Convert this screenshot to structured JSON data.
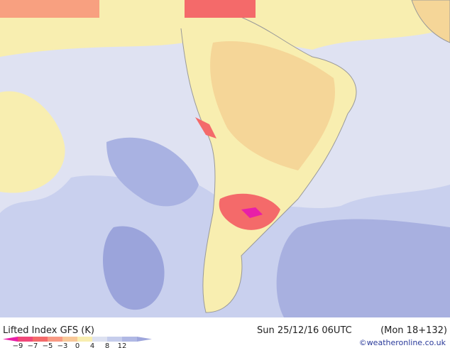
{
  "header": {
    "title": "Lifted Index GFS (K)",
    "run": "Sun 25/12/16 06UTC",
    "forecast": "(Mon 18+132)",
    "credit": "©weatheronline.co.uk"
  },
  "legend": {
    "labels": [
      "−9",
      "−7",
      "−5",
      "−3",
      "0",
      "4",
      "8",
      "12"
    ],
    "colors": [
      "#e81fa8",
      "#f04878",
      "#f46a6a",
      "#f89a84",
      "#f8c898",
      "#f8eeb0",
      "#dde1f1",
      "#c6cdec",
      "#b0b8e4",
      "#9ea6dc"
    ]
  }
}
